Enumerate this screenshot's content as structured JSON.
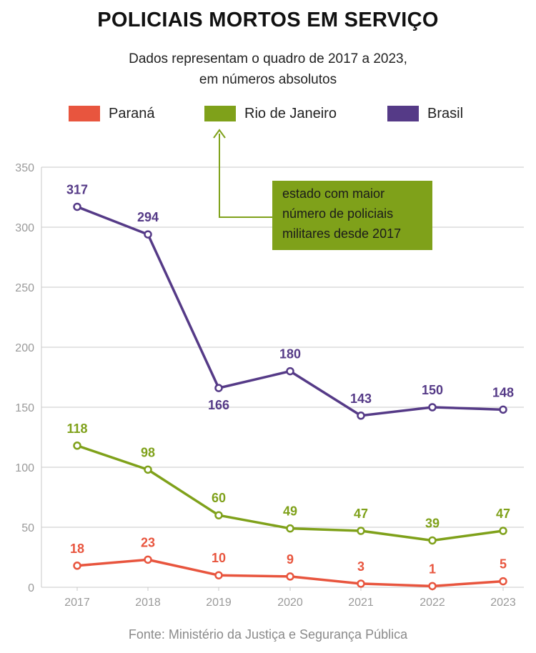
{
  "title": "POLICIAIS MORTOS EM SERVIÇO",
  "subtitle": [
    "Dados representam o quadro de 2017 a 2023,",
    "em números absolutos"
  ],
  "annotation": {
    "lines": [
      "estado com maior",
      "número de policiais",
      "militares desde 2017"
    ],
    "color": "#7fa11a"
  },
  "footer": "Fonte: Ministério da Justiça e Segurança Pública",
  "colors": {
    "parana": "#e8553e",
    "rio": "#7fa11a",
    "brasil": "#553a87",
    "grid": "#c8c8c8",
    "axis_text": "#9a9a9a"
  },
  "chart_data": {
    "type": "line",
    "title": "POLICIAIS MORTOS EM SERVIÇO",
    "subtitle": "Dados representam o quadro de 2017 a 2023, em números absolutos",
    "x": [
      "2017",
      "2018",
      "2019",
      "2020",
      "2021",
      "2022",
      "2023"
    ],
    "ylim": [
      0,
      350
    ],
    "yticks": [
      0,
      50,
      100,
      150,
      200,
      250,
      300,
      350
    ],
    "grid": true,
    "legend_position": "top",
    "series": [
      {
        "name": "Paraná",
        "color": "#e8553e",
        "values": [
          18,
          23,
          10,
          9,
          3,
          1,
          5
        ],
        "labels": [
          "18",
          "23",
          "10",
          "9",
          "3",
          "1",
          "5"
        ]
      },
      {
        "name": "Rio de Janeiro",
        "color": "#7fa11a",
        "values": [
          118,
          98,
          60,
          49,
          47,
          39,
          47
        ],
        "labels": [
          "118",
          "98",
          "60",
          "49",
          "47",
          "39",
          "47"
        ]
      },
      {
        "name": "Brasil",
        "color": "#553a87",
        "values": [
          317,
          294,
          166,
          180,
          143,
          150,
          148
        ],
        "labels": [
          "317",
          "294",
          "166",
          "180",
          "143",
          "150",
          "148"
        ]
      }
    ]
  }
}
